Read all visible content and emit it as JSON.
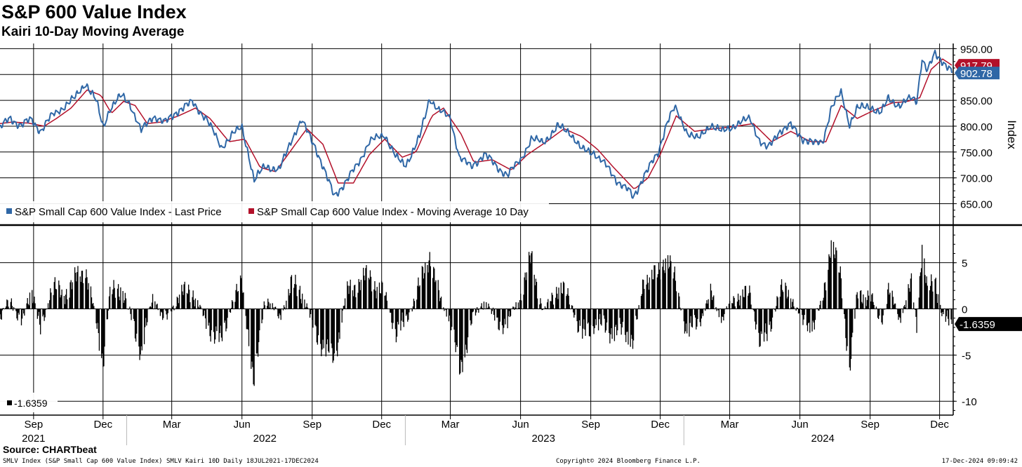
{
  "title": "S&P 600 Value Index",
  "subtitle": "Kairi 10-Day Moving Average",
  "source": "Source: CHARTbeat",
  "footer": {
    "left": "SMLV Index (S&P Small Cap 600 Value Index) SMLV Kairi 10D  Daily 18JUL2021-17DEC2024",
    "center": "Copyright© 2024 Bloomberg Finance L.P.",
    "right": "17-Dec-2024 09:09:42"
  },
  "colors": {
    "price": "#2f67a6",
    "ma": "#b3112a",
    "kairi": "#000000",
    "grid": "#000000"
  },
  "chart_data": [
    {
      "type": "line",
      "panel": "top",
      "ylabel": "Index",
      "ylim": [
        610,
        960
      ],
      "yticks": [
        "950.00",
        "850.00",
        "800.00",
        "750.00",
        "700.00",
        "650.00"
      ],
      "grid": true,
      "legend_position": "bottom-left",
      "x_start": "2021-07-19",
      "x_end": "2024-12-17",
      "series": [
        {
          "name": "S&P Small Cap 600 Value Index - Last Price",
          "color": "#2f67a6",
          "last_value_label": "902.78",
          "points": [
            [
              "2021-07-19",
              795
            ],
            [
              "2021-08-01",
              815
            ],
            [
              "2021-08-15",
              800
            ],
            [
              "2021-08-29",
              812
            ],
            [
              "2021-09-10",
              790
            ],
            [
              "2021-09-25",
              820
            ],
            [
              "2021-10-08",
              835
            ],
            [
              "2021-10-25",
              855
            ],
            [
              "2021-11-08",
              885
            ],
            [
              "2021-11-22",
              850
            ],
            [
              "2021-12-01",
              800
            ],
            [
              "2021-12-10",
              835
            ],
            [
              "2021-12-25",
              860
            ],
            [
              "2022-01-05",
              845
            ],
            [
              "2022-01-20",
              790
            ],
            [
              "2022-02-05",
              820
            ],
            [
              "2022-02-20",
              805
            ],
            [
              "2022-03-10",
              830
            ],
            [
              "2022-03-28",
              845
            ],
            [
              "2022-04-15",
              815
            ],
            [
              "2022-05-05",
              760
            ],
            [
              "2022-05-20",
              785
            ],
            [
              "2022-06-01",
              800
            ],
            [
              "2022-06-10",
              745
            ],
            [
              "2022-06-17",
              695
            ],
            [
              "2022-07-01",
              725
            ],
            [
              "2022-07-20",
              715
            ],
            [
              "2022-08-05",
              775
            ],
            [
              "2022-08-18",
              810
            ],
            [
              "2022-09-05",
              760
            ],
            [
              "2022-09-20",
              700
            ],
            [
              "2022-09-30",
              665
            ],
            [
              "2022-10-15",
              690
            ],
            [
              "2022-11-01",
              730
            ],
            [
              "2022-11-15",
              770
            ],
            [
              "2022-12-05",
              785
            ],
            [
              "2022-12-20",
              740
            ],
            [
              "2023-01-01",
              725
            ],
            [
              "2023-01-20",
              780
            ],
            [
              "2023-02-02",
              855
            ],
            [
              "2023-02-15",
              830
            ],
            [
              "2023-03-01",
              815
            ],
            [
              "2023-03-13",
              740
            ],
            [
              "2023-03-28",
              720
            ],
            [
              "2023-04-15",
              745
            ],
            [
              "2023-05-01",
              720
            ],
            [
              "2023-05-15",
              705
            ],
            [
              "2023-06-01",
              735
            ],
            [
              "2023-06-15",
              775
            ],
            [
              "2023-07-01",
              770
            ],
            [
              "2023-07-20",
              800
            ],
            [
              "2023-08-05",
              790
            ],
            [
              "2023-08-20",
              755
            ],
            [
              "2023-09-05",
              750
            ],
            [
              "2023-09-20",
              725
            ],
            [
              "2023-10-05",
              695
            ],
            [
              "2023-10-20",
              675
            ],
            [
              "2023-10-27",
              660
            ],
            [
              "2023-11-10",
              705
            ],
            [
              "2023-11-28",
              745
            ],
            [
              "2023-12-10",
              810
            ],
            [
              "2023-12-20",
              835
            ],
            [
              "2024-01-05",
              790
            ],
            [
              "2024-01-20",
              775
            ],
            [
              "2024-02-05",
              805
            ],
            [
              "2024-02-20",
              790
            ],
            [
              "2024-03-10",
              805
            ],
            [
              "2024-03-28",
              815
            ],
            [
              "2024-04-10",
              770
            ],
            [
              "2024-04-20",
              755
            ],
            [
              "2024-05-05",
              790
            ],
            [
              "2024-05-20",
              800
            ],
            [
              "2024-06-05",
              775
            ],
            [
              "2024-06-20",
              765
            ],
            [
              "2024-07-01",
              770
            ],
            [
              "2024-07-12",
              835
            ],
            [
              "2024-07-25",
              865
            ],
            [
              "2024-08-05",
              805
            ],
            [
              "2024-08-15",
              835
            ],
            [
              "2024-09-01",
              840
            ],
            [
              "2024-09-15",
              825
            ],
            [
              "2024-09-25",
              855
            ],
            [
              "2024-10-10",
              840
            ],
            [
              "2024-10-25",
              855
            ],
            [
              "2024-11-01",
              850
            ],
            [
              "2024-11-08",
              930
            ],
            [
              "2024-11-15",
              905
            ],
            [
              "2024-11-25",
              940
            ],
            [
              "2024-12-05",
              925
            ],
            [
              "2024-12-17",
              903
            ]
          ]
        },
        {
          "name": "S&P Small Cap 600 Value Index - Moving Average 10 Day",
          "color": "#b3112a",
          "last_value_label": "917.79",
          "points": [
            [
              "2021-07-19",
              805
            ],
            [
              "2021-08-05",
              808
            ],
            [
              "2021-08-25",
              806
            ],
            [
              "2021-09-15",
              800
            ],
            [
              "2021-10-01",
              815
            ],
            [
              "2021-10-20",
              835
            ],
            [
              "2021-11-10",
              870
            ],
            [
              "2021-11-28",
              860
            ],
            [
              "2021-12-12",
              825
            ],
            [
              "2021-12-28",
              848
            ],
            [
              "2022-01-12",
              840
            ],
            [
              "2022-01-28",
              805
            ],
            [
              "2022-02-15",
              808
            ],
            [
              "2022-03-10",
              820
            ],
            [
              "2022-04-01",
              835
            ],
            [
              "2022-04-20",
              815
            ],
            [
              "2022-05-15",
              770
            ],
            [
              "2022-06-05",
              775
            ],
            [
              "2022-06-25",
              720
            ],
            [
              "2022-07-15",
              712
            ],
            [
              "2022-08-10",
              765
            ],
            [
              "2022-08-25",
              795
            ],
            [
              "2022-09-15",
              765
            ],
            [
              "2022-10-05",
              690
            ],
            [
              "2022-10-25",
              690
            ],
            [
              "2022-11-15",
              745
            ],
            [
              "2022-12-05",
              775
            ],
            [
              "2022-12-28",
              740
            ],
            [
              "2023-01-15",
              750
            ],
            [
              "2023-02-05",
              820
            ],
            [
              "2023-02-20",
              835
            ],
            [
              "2023-03-15",
              785
            ],
            [
              "2023-04-01",
              730
            ],
            [
              "2023-04-25",
              735
            ],
            [
              "2023-05-20",
              715
            ],
            [
              "2023-06-10",
              745
            ],
            [
              "2023-07-05",
              770
            ],
            [
              "2023-07-28",
              795
            ],
            [
              "2023-08-20",
              780
            ],
            [
              "2023-09-10",
              755
            ],
            [
              "2023-10-01",
              720
            ],
            [
              "2023-10-28",
              678
            ],
            [
              "2023-11-15",
              700
            ],
            [
              "2023-12-01",
              745
            ],
            [
              "2023-12-22",
              820
            ],
            [
              "2024-01-15",
              790
            ],
            [
              "2024-02-10",
              795
            ],
            [
              "2024-03-10",
              800
            ],
            [
              "2024-04-01",
              805
            ],
            [
              "2024-04-25",
              770
            ],
            [
              "2024-05-20",
              790
            ],
            [
              "2024-06-15",
              770
            ],
            [
              "2024-07-05",
              770
            ],
            [
              "2024-07-25",
              840
            ],
            [
              "2024-08-15",
              815
            ],
            [
              "2024-09-05",
              830
            ],
            [
              "2024-09-30",
              845
            ],
            [
              "2024-10-20",
              848
            ],
            [
              "2024-11-05",
              855
            ],
            [
              "2024-11-20",
              910
            ],
            [
              "2024-12-05",
              930
            ],
            [
              "2024-12-17",
              918
            ]
          ]
        }
      ]
    },
    {
      "type": "bar",
      "panel": "bottom",
      "series_name": "SMLV Kairi 10D",
      "last_value_label": "-1.6359",
      "legend_value": "-1.6359",
      "ylim": [
        -11.5,
        9
      ],
      "yticks": [
        "5",
        "0",
        "-5",
        "-10"
      ],
      "grid": true,
      "x_start": "2021-07-19",
      "x_end": "2024-12-17",
      "bar_profile": [
        [
          "2021-07-19",
          -1.5
        ],
        [
          "2021-08-01",
          1.5
        ],
        [
          "2021-08-15",
          -2.0
        ],
        [
          "2021-08-29",
          2.5
        ],
        [
          "2021-09-10",
          -2.5
        ],
        [
          "2021-09-25",
          2.5
        ],
        [
          "2021-10-08",
          1.5
        ],
        [
          "2021-10-25",
          3.0
        ],
        [
          "2021-11-08",
          4.5
        ],
        [
          "2021-11-22",
          -1.5
        ],
        [
          "2021-12-01",
          -5.5
        ],
        [
          "2021-12-10",
          1.5
        ],
        [
          "2021-12-25",
          2.5
        ],
        [
          "2022-01-05",
          -0.5
        ],
        [
          "2022-01-20",
          -4.5
        ],
        [
          "2022-02-05",
          1.5
        ],
        [
          "2022-02-20",
          -1.5
        ],
        [
          "2022-03-10",
          1.5
        ],
        [
          "2022-03-28",
          2.0
        ],
        [
          "2022-04-15",
          -1.5
        ],
        [
          "2022-05-05",
          -3.5
        ],
        [
          "2022-05-20",
          1.0
        ],
        [
          "2022-06-01",
          2.5
        ],
        [
          "2022-06-10",
          -3.0
        ],
        [
          "2022-06-17",
          -8.5
        ],
        [
          "2022-07-01",
          1.5
        ],
        [
          "2022-07-20",
          -1.0
        ],
        [
          "2022-08-05",
          2.5
        ],
        [
          "2022-08-18",
          2.0
        ],
        [
          "2022-09-05",
          -2.5
        ],
        [
          "2022-09-20",
          -4.5
        ],
        [
          "2022-09-30",
          -5.5
        ],
        [
          "2022-10-15",
          1.5
        ],
        [
          "2022-11-01",
          3.0
        ],
        [
          "2022-11-15",
          3.5
        ],
        [
          "2022-12-05",
          1.5
        ],
        [
          "2022-12-20",
          -2.5
        ],
        [
          "2023-01-01",
          -1.5
        ],
        [
          "2023-01-20",
          2.5
        ],
        [
          "2023-02-02",
          6.0
        ],
        [
          "2023-02-15",
          1.0
        ],
        [
          "2023-03-01",
          -1.0
        ],
        [
          "2023-03-13",
          -7.0
        ],
        [
          "2023-03-28",
          -1.5
        ],
        [
          "2023-04-15",
          1.0
        ],
        [
          "2023-05-01",
          -1.5
        ],
        [
          "2023-05-15",
          -1.5
        ],
        [
          "2023-06-01",
          1.5
        ],
        [
          "2023-06-15",
          5.5
        ],
        [
          "2023-07-01",
          -0.5
        ],
        [
          "2023-07-20",
          2.5
        ],
        [
          "2023-08-05",
          1.0
        ],
        [
          "2023-08-20",
          -3.0
        ],
        [
          "2023-09-05",
          -1.5
        ],
        [
          "2023-09-20",
          -2.0
        ],
        [
          "2023-10-05",
          -2.5
        ],
        [
          "2023-10-20",
          -2.5
        ],
        [
          "2023-10-27",
          -3.5
        ],
        [
          "2023-11-10",
          3.5
        ],
        [
          "2023-11-28",
          3.5
        ],
        [
          "2023-12-10",
          6.0
        ],
        [
          "2023-12-20",
          3.0
        ],
        [
          "2024-01-05",
          -2.5
        ],
        [
          "2024-01-20",
          -1.5
        ],
        [
          "2024-02-05",
          1.5
        ],
        [
          "2024-02-20",
          -1.0
        ],
        [
          "2024-03-10",
          1.5
        ],
        [
          "2024-03-28",
          1.5
        ],
        [
          "2024-04-10",
          -3.5
        ],
        [
          "2024-04-20",
          -3.0
        ],
        [
          "2024-05-05",
          2.0
        ],
        [
          "2024-05-20",
          1.5
        ],
        [
          "2024-06-05",
          -1.5
        ],
        [
          "2024-06-20",
          -1.5
        ],
        [
          "2024-07-01",
          1.0
        ],
        [
          "2024-07-12",
          7.5
        ],
        [
          "2024-07-25",
          3.0
        ],
        [
          "2024-08-05",
          -6.5
        ],
        [
          "2024-08-15",
          1.5
        ],
        [
          "2024-09-01",
          1.5
        ],
        [
          "2024-09-15",
          -1.5
        ],
        [
          "2024-09-25",
          2.0
        ],
        [
          "2024-10-10",
          -1.0
        ],
        [
          "2024-10-25",
          2.5
        ],
        [
          "2024-11-01",
          -1.5
        ],
        [
          "2024-11-08",
          7.0
        ],
        [
          "2024-11-15",
          1.5
        ],
        [
          "2024-11-25",
          3.5
        ],
        [
          "2024-12-05",
          -1.0
        ],
        [
          "2024-12-17",
          -1.6359
        ]
      ]
    }
  ],
  "x_axis": {
    "months": [
      {
        "label": "Sep",
        "date": "2021-09-01"
      },
      {
        "label": "Dec",
        "date": "2021-12-01"
      },
      {
        "label": "Mar",
        "date": "2022-03-01"
      },
      {
        "label": "Jun",
        "date": "2022-06-01"
      },
      {
        "label": "Sep",
        "date": "2022-09-01"
      },
      {
        "label": "Dec",
        "date": "2022-12-01"
      },
      {
        "label": "Mar",
        "date": "2023-03-01"
      },
      {
        "label": "Jun",
        "date": "2023-06-01"
      },
      {
        "label": "Sep",
        "date": "2023-09-01"
      },
      {
        "label": "Dec",
        "date": "2023-12-01"
      },
      {
        "label": "Mar",
        "date": "2024-03-01"
      },
      {
        "label": "Jun",
        "date": "2024-06-01"
      },
      {
        "label": "Sep",
        "date": "2024-09-01"
      },
      {
        "label": "Dec",
        "date": "2024-12-01"
      }
    ],
    "years": [
      {
        "label": "2021",
        "date": "2021-09-01"
      },
      {
        "label": "2022",
        "date": "2022-07-01"
      },
      {
        "label": "2023",
        "date": "2023-07-01"
      },
      {
        "label": "2024",
        "date": "2024-07-01"
      }
    ],
    "year_separators": [
      "2022-01-01",
      "2023-01-01",
      "2024-01-01"
    ]
  }
}
